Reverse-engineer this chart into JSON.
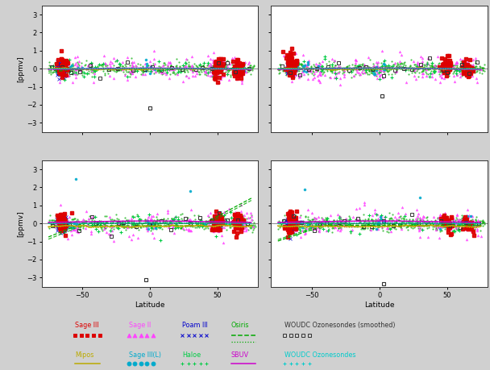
{
  "xlim": [
    -80,
    80
  ],
  "ylim": [
    -3.5,
    3.5
  ],
  "yticks": [
    -3,
    -2,
    -1,
    0,
    1,
    2,
    3
  ],
  "xticks": [
    -50,
    0,
    50
  ],
  "ylabel": "[ppmv]",
  "xlabel": "Latitude",
  "fig_bg": "#d0d0d0",
  "panel_bg": "#ffffff",
  "C_sage3": "#dd0000",
  "C_sage2": "#ff44ff",
  "C_poam3": "#0000cc",
  "C_osiris": "#00aa00",
  "C_woudc_s": "#333333",
  "C_mipos": "#bbaa00",
  "C_sage3L": "#00aacc",
  "C_haloe": "#00cc44",
  "C_sbuv": "#cc00cc",
  "C_woudc": "#00cccc",
  "legend_row1": [
    {
      "label": "Sage III",
      "color": "#dd0000",
      "marker": "s",
      "ls": "none"
    },
    {
      "label": "Sage II",
      "color": "#ff44ff",
      "marker": "^",
      "ls": "none"
    },
    {
      "label": "Poam III",
      "color": "#0000cc",
      "marker": "x",
      "ls": "none"
    },
    {
      "label": "Osiris",
      "color": "#00aa00",
      "marker": "none",
      "ls": "--"
    },
    {
      "label": "WOUDC Ozonesondes (smoothed)",
      "color": "#333333",
      "marker": "s",
      "ls": "none",
      "open": true
    }
  ],
  "legend_row2": [
    {
      "label": "Mipos",
      "color": "#bbaa00",
      "marker": "none",
      "ls": "-"
    },
    {
      "label": "Sage III(L)",
      "color": "#00aacc",
      "marker": "o",
      "ls": "none"
    },
    {
      "label": "Haloe",
      "color": "#00cc44",
      "marker": "+",
      "ls": "none"
    },
    {
      "label": "SBUV",
      "color": "#cc00cc",
      "marker": "none",
      "ls": "-"
    },
    {
      "label": "WOUDC Ozonesondes",
      "color": "#00cccc",
      "marker": "+",
      "ls": "none"
    }
  ]
}
